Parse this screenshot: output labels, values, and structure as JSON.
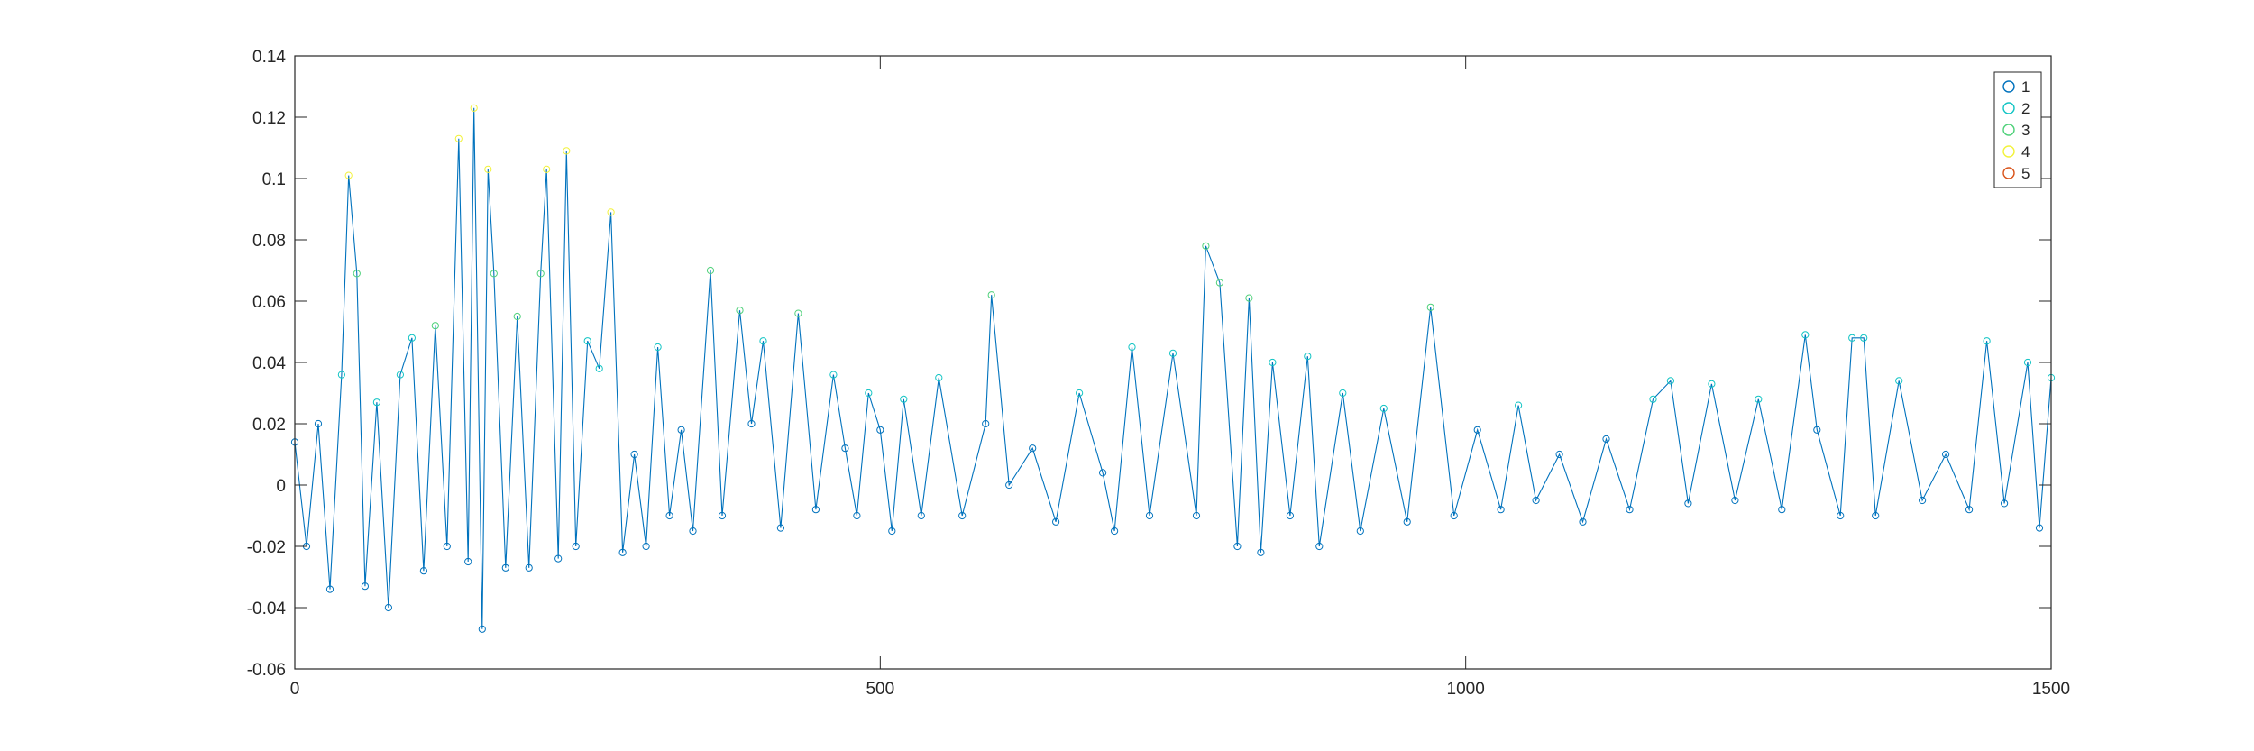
{
  "chart_data": {
    "type": "line",
    "title": "",
    "xlabel": "",
    "ylabel": "",
    "xlim": [
      0,
      1500
    ],
    "ylim": [
      -0.06,
      0.14
    ],
    "xticks": [
      0,
      500,
      1000,
      1500
    ],
    "xtick_labels": [
      "0",
      "500",
      "1000",
      "1500"
    ],
    "yticks": [
      -0.06,
      -0.04,
      -0.02,
      0,
      0.02,
      0.04,
      0.06,
      0.08,
      0.1,
      0.12,
      0.14
    ],
    "ytick_labels": [
      "-0.06",
      "-0.04",
      "-0.02",
      "0",
      "0.02",
      "0.04",
      "0.06",
      "0.08",
      "0.1",
      "0.12",
      "0.14"
    ],
    "grid": false,
    "legend_position": "top-right",
    "legend": [
      "1",
      "2",
      "3",
      "4",
      "5"
    ],
    "line_color": "#0072BD",
    "marker": "circle",
    "marker_colors": [
      "#0072BD",
      "#11C4C4",
      "#4FD17A",
      "#F2F23A",
      "#D95319"
    ],
    "series": [
      {
        "name": "1",
        "x": [
          0,
          10,
          20,
          30,
          40,
          46,
          53,
          60,
          70,
          80,
          90,
          100,
          110,
          120,
          130,
          140,
          148,
          153,
          160,
          165,
          170,
          180,
          190,
          200,
          210,
          215,
          225,
          232,
          240,
          250,
          260,
          270,
          280,
          290,
          300,
          310,
          320,
          330,
          340,
          355,
          365,
          380,
          390,
          400,
          415,
          430,
          445,
          460,
          470,
          480,
          490,
          500,
          510,
          520,
          535,
          550,
          570,
          590,
          595,
          610,
          630,
          650,
          670,
          690,
          700,
          715,
          730,
          750,
          770,
          778,
          790,
          805,
          815,
          825,
          835,
          850,
          865,
          875,
          895,
          910,
          930,
          950,
          970,
          990,
          1010,
          1030,
          1045,
          1060,
          1080,
          1100,
          1120,
          1140,
          1160,
          1175,
          1190,
          1210,
          1230,
          1250,
          1270,
          1290,
          1300,
          1320,
          1330,
          1340,
          1350,
          1370,
          1390,
          1410,
          1430,
          1445,
          1460,
          1480,
          1490,
          1500
        ],
        "y": [
          0.014,
          -0.02,
          0.02,
          -0.034,
          0.036,
          0.101,
          0.069,
          -0.033,
          0.027,
          -0.04,
          0.036,
          0.048,
          -0.028,
          0.052,
          -0.02,
          0.113,
          -0.025,
          0.123,
          -0.047,
          0.103,
          0.069,
          -0.027,
          0.055,
          -0.027,
          0.069,
          0.103,
          -0.024,
          0.109,
          -0.02,
          0.047,
          0.038,
          0.089,
          -0.022,
          0.01,
          -0.02,
          0.045,
          -0.01,
          0.018,
          -0.015,
          0.07,
          -0.01,
          0.057,
          0.02,
          0.047,
          -0.014,
          0.056,
          -0.008,
          0.036,
          0.012,
          -0.01,
          0.03,
          0.018,
          -0.015,
          0.028,
          -0.01,
          0.035,
          -0.01,
          0.02,
          0.062,
          0.0,
          0.012,
          -0.012,
          0.03,
          0.004,
          -0.015,
          0.045,
          -0.01,
          0.043,
          -0.01,
          0.078,
          0.066,
          -0.02,
          0.061,
          -0.022,
          0.04,
          -0.01,
          0.042,
          -0.02,
          0.03,
          -0.015,
          0.025,
          -0.012,
          0.058,
          -0.01,
          0.018,
          -0.008,
          0.026,
          -0.005,
          0.01,
          -0.012,
          0.015,
          -0.008,
          0.028,
          0.034,
          -0.006,
          0.033,
          -0.005,
          0.028,
          -0.008,
          0.049,
          0.018,
          -0.01,
          0.048,
          0.048,
          -0.01,
          0.034,
          -0.005,
          0.01,
          -0.008,
          0.047,
          -0.006,
          0.04,
          -0.014,
          0.035
        ]
      }
    ]
  }
}
